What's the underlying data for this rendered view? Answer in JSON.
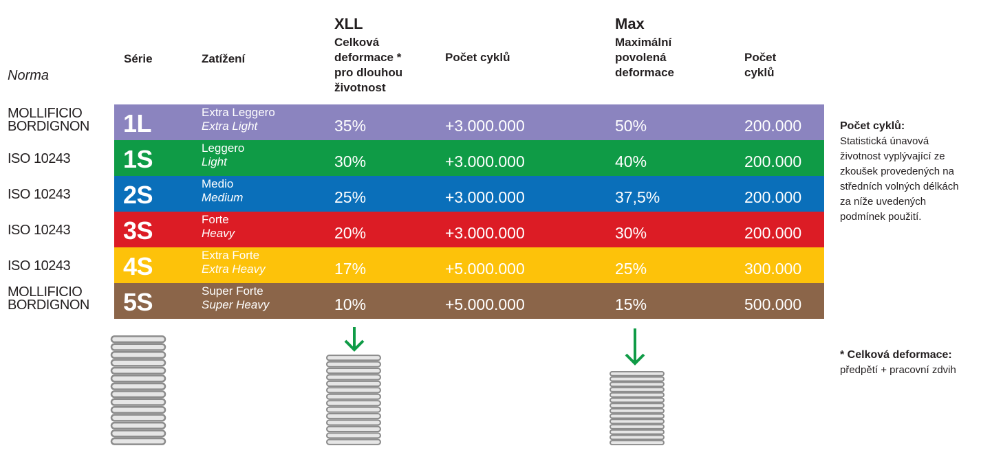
{
  "header": {
    "norma": "Norma",
    "serie": "Série",
    "zatizeni": "Zatížení",
    "xll_title": "XLL",
    "xll_sub": [
      "Celková",
      "deformace *",
      "pro dlouhou",
      "životnost"
    ],
    "cycles1": "Počet cyklů",
    "max_title": "Max",
    "max_sub": [
      "Maximální",
      "povolená",
      "deformace"
    ],
    "cycles2": [
      "Počet",
      "cyklů"
    ]
  },
  "rows": [
    {
      "norma": [
        "MOLLIFICIO",
        "BORDIGNON"
      ],
      "code": "1L",
      "load": "Extra Leggero",
      "load_en": "Extra Light",
      "xll": "35%",
      "cycles_xll": "+3.000.000",
      "max": "50%",
      "cycles_max": "200.000",
      "color": "#8b84bf"
    },
    {
      "norma": [
        "ISO 10243"
      ],
      "code": "1S",
      "load": "Leggero",
      "load_en": "Light",
      "xll": "30%",
      "cycles_xll": "+3.000.000",
      "max": "40%",
      "cycles_max": "200.000",
      "color": "#0f9b46"
    },
    {
      "norma": [
        "ISO 10243"
      ],
      "code": "2S",
      "load": "Medio",
      "load_en": "Medium",
      "xll": "25%",
      "cycles_xll": "+3.000.000",
      "max": "37,5%",
      "cycles_max": "200.000",
      "color": "#0a6fba"
    },
    {
      "norma": [
        "ISO 10243"
      ],
      "code": "3S",
      "load": "Forte",
      "load_en": "Heavy",
      "xll": "20%",
      "cycles_xll": "+3.000.000",
      "max": "30%",
      "cycles_max": "200.000",
      "color": "#dc1c25"
    },
    {
      "norma": [
        "ISO 10243"
      ],
      "code": "4S",
      "load": "Extra Forte",
      "load_en": "Extra Heavy",
      "xll": "17%",
      "cycles_xll": "+5.000.000",
      "max": "25%",
      "cycles_max": "300.000",
      "color": "#fdc20a"
    },
    {
      "norma": [
        "MOLLIFICIO",
        "BORDIGNON"
      ],
      "code": "5S",
      "load": "Super Forte",
      "load_en": "Super Heavy",
      "xll": "10%",
      "cycles_xll": "+5.000.000",
      "max": "15%",
      "cycles_max": "500.000",
      "color": "#8b6549"
    }
  ],
  "side": {
    "cycles_title": "Počet cyklů:",
    "cycles_text": [
      "Statistická únavová",
      "životnost vyplývající ze",
      "zkoušek provedených na",
      "středních volných délkách",
      "za níže uvedených",
      "podmínek použití."
    ],
    "def_title": "* Celková deformace:",
    "def_text": "předpětí + pracovní zdvih"
  },
  "colors": {
    "arrow": "#0f9b46",
    "spring": "#8c8c8c",
    "spring_fill": "#e6e6e6"
  },
  "icons": {
    "arrow": "arrow-down-icon",
    "spring": "spring-icon"
  }
}
